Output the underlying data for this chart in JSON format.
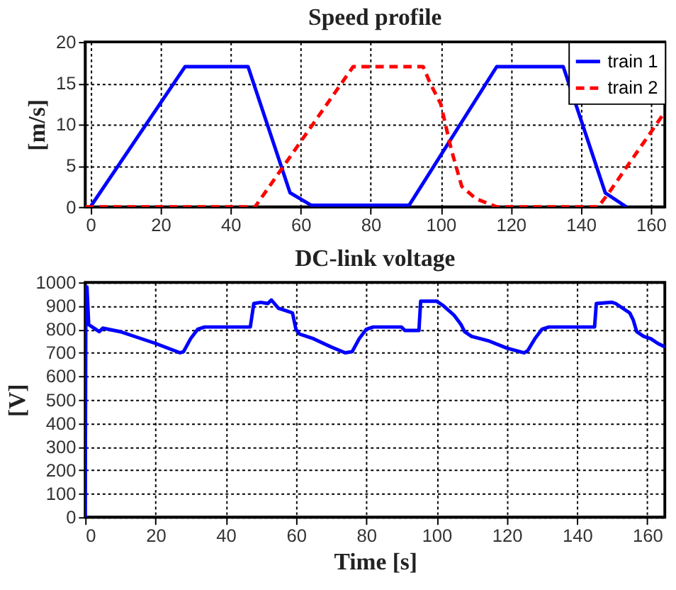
{
  "chart_data": [
    {
      "type": "line",
      "title": "Speed profile",
      "ylabel": "[m/s]",
      "xlim": [
        -1.5,
        164
      ],
      "xticks": [
        0,
        20,
        40,
        60,
        80,
        100,
        120,
        140,
        160
      ],
      "ylim": [
        0,
        20
      ],
      "yticks": [
        0,
        5,
        10,
        15,
        20
      ],
      "grid": true,
      "legend": "top right",
      "marker": "none",
      "series": [
        {
          "name": "train 1",
          "color": "#0000ff",
          "line_style": "solid",
          "x": [
            0,
            27,
            45,
            57,
            63,
            91,
            116,
            135,
            147,
            153
          ],
          "values": [
            0,
            17,
            17,
            1.7,
            0.2,
            0.2,
            17,
            17,
            1.7,
            0
          ]
        },
        {
          "name": "train 2",
          "color": "#ff0000",
          "line_style": "dashed",
          "x": [
            -1.5,
            47,
            75,
            95,
            97,
            100,
            103,
            106,
            110,
            116,
            145,
            148,
            164
          ],
          "values": [
            0,
            0,
            17,
            17,
            15,
            12.5,
            7,
            2.5,
            1,
            0,
            0,
            1.7,
            11.5
          ]
        }
      ]
    },
    {
      "type": "line",
      "title": "DC-link voltage",
      "xlabel": "Time [s]",
      "ylabel": "[V]",
      "xlim": [
        0,
        165
      ],
      "xticks": [
        0,
        20,
        40,
        60,
        80,
        100,
        120,
        140,
        160
      ],
      "ylim": [
        0,
        1000
      ],
      "yticks": [
        0,
        100,
        200,
        300,
        400,
        500,
        600,
        700,
        800,
        900,
        1000
      ],
      "grid": true,
      "legend": false,
      "marker": "none",
      "series": [
        {
          "color": "#0000ff",
          "line_style": "solid",
          "x": [
            0,
            0.2,
            0.5,
            1,
            3,
            4,
            5,
            10,
            20,
            27,
            28,
            30,
            32,
            34,
            47,
            48,
            50,
            52,
            53,
            55,
            57,
            59,
            60,
            61,
            65,
            70,
            74,
            76,
            78,
            80,
            82,
            90,
            91,
            95,
            95.5,
            100,
            102,
            105,
            107,
            108,
            110,
            115,
            120,
            125,
            126,
            128,
            130,
            132,
            145,
            145.5,
            150,
            151,
            155,
            156,
            157,
            159,
            161,
            163,
            165
          ],
          "values": [
            0,
            980,
            980,
            820,
            800,
            790,
            805,
            790,
            740,
            700,
            705,
            760,
            800,
            810,
            810,
            910,
            915,
            910,
            925,
            890,
            880,
            870,
            800,
            780,
            760,
            725,
            700,
            705,
            760,
            800,
            810,
            810,
            795,
            795,
            920,
            920,
            900,
            860,
            820,
            790,
            770,
            750,
            720,
            700,
            710,
            760,
            800,
            810,
            810,
            910,
            915,
            910,
            870,
            840,
            790,
            770,
            760,
            740,
            725
          ]
        }
      ]
    }
  ]
}
